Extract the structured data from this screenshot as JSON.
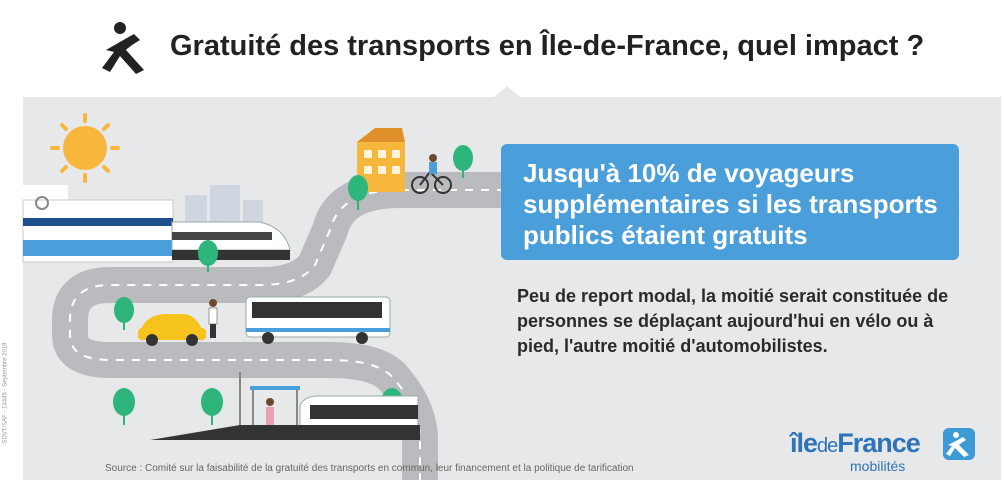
{
  "title": "Gratuité des transports en Île-de-France, quel impact ?",
  "headline": "Jusqu'à 10% de voyageurs supplémentaires si les transports publics étaient gratuits",
  "body": "Peu de report modal, la moitié serait constituée de personnes se déplaçant aujourd'hui en vélo ou à pied, l'autre moitié d'automobilistes.",
  "source": "Source : Comité sur la faisabilité de la gratuité des transports en commun, leur financement et la politique de tarification",
  "side_code": "SDVT/SAF - 14445 - Septembre 2018",
  "brand": {
    "word_ile": "île",
    "word_de": "de",
    "word_france": "France",
    "sub": "mobilités"
  },
  "colors": {
    "accent": "#4a9fda",
    "panel": "#e7e8ea",
    "road": "#b9bbbe",
    "brand": "#2f74b8",
    "car": "#f6c31c",
    "building": "#f6b73c",
    "tree": "#2eb57c"
  },
  "icons": {
    "title_logo": "walking-person-icon",
    "brand_logo": "walking-person-icon"
  }
}
